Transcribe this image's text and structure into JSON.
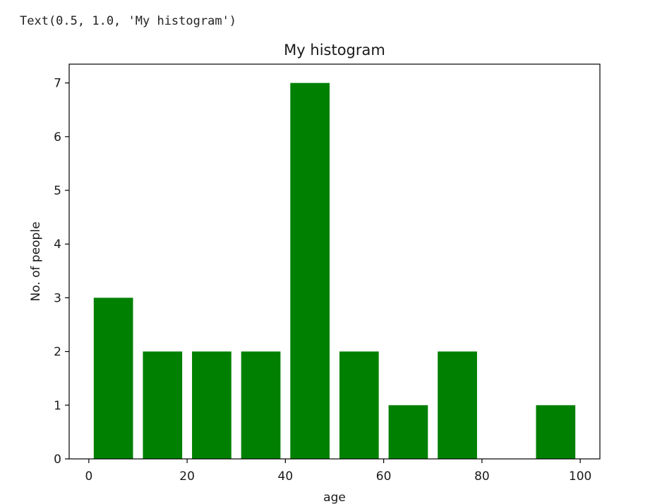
{
  "output": {
    "return_repr": "Text(0.5, 1.0, 'My histogram')"
  },
  "chart_data": {
    "type": "bar",
    "title": "My histogram",
    "xlabel": "age",
    "ylabel": "No. of people",
    "bar_color": "#008000",
    "bins": [
      {
        "start": 0,
        "end": 10,
        "count": 3
      },
      {
        "start": 10,
        "end": 20,
        "count": 2
      },
      {
        "start": 20,
        "end": 30,
        "count": 2
      },
      {
        "start": 30,
        "end": 40,
        "count": 2
      },
      {
        "start": 40,
        "end": 50,
        "count": 7
      },
      {
        "start": 50,
        "end": 60,
        "count": 2
      },
      {
        "start": 60,
        "end": 70,
        "count": 1
      },
      {
        "start": 70,
        "end": 80,
        "count": 2
      },
      {
        "start": 80,
        "end": 90,
        "count": 0
      },
      {
        "start": 90,
        "end": 100,
        "count": 1
      }
    ],
    "xlim": [
      -4,
      104
    ],
    "ylim": [
      0,
      7.35
    ],
    "xticks": [
      0,
      20,
      40,
      60,
      80,
      100
    ],
    "yticks": [
      0,
      1,
      2,
      3,
      4,
      5,
      6,
      7
    ],
    "grid": false
  }
}
